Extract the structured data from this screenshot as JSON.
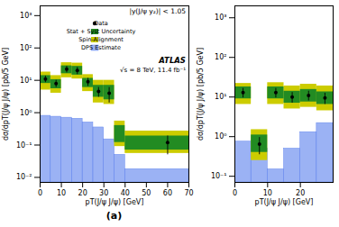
{
  "chart_data": [
    {
      "type": "errorbar",
      "xlabel": "pT(J/ψ J/ψ) [GeV]",
      "ylabel": "dσ/dpT(J/ψ J/ψ) [pb/5 GeV]",
      "log": "y",
      "xlim": [
        0,
        70
      ],
      "xticks": [
        0,
        10,
        20,
        30,
        40,
        50,
        60,
        70
      ],
      "ylim": [
        0.007,
        2000
      ],
      "yticks": [
        {
          "value": 0.01,
          "label": "10⁻²"
        },
        {
          "value": 0.1,
          "label": "10⁻¹"
        },
        {
          "value": 1,
          "label": "10⁰"
        },
        {
          "value": 10,
          "label": "10¹"
        },
        {
          "value": 100,
          "label": "10²"
        },
        {
          "value": 1000,
          "label": "10³"
        }
      ],
      "legend": "upper right",
      "annotations": [
        "|y(J/ψ y₂)| < 1.05",
        "ATLAS",
        "√s = 8 TeV, 11.4 fb⁻¹"
      ],
      "caption": "(a)",
      "series": [
        {
          "name": "Data",
          "type": "errorbar",
          "color": "black",
          "marker": "circle",
          "x": [
            2.5,
            7.5,
            12.5,
            17.5,
            22.5,
            27.5,
            32.5,
            60.0
          ],
          "values": [
            11.0,
            8.0,
            22.0,
            20.0,
            9.0,
            4.5,
            4.0,
            0.12
          ],
          "error_low": [
            2.5,
            2.0,
            5.0,
            5.0,
            2.5,
            1.5,
            2.0,
            0.07
          ],
          "error_high": [
            2.5,
            2.0,
            5.0,
            5.0,
            2.5,
            1.5,
            2.0,
            0.07
          ]
        },
        {
          "name": "Stat + Syst Uncertainty",
          "type": "band",
          "color": "#228b22",
          "bins": [
            0,
            5,
            10,
            15,
            20,
            25,
            30,
            35,
            40,
            70
          ],
          "low": [
            8.0,
            5.5,
            16.0,
            14.5,
            6.0,
            3.0,
            2.5,
            0.12,
            0.07
          ],
          "high": [
            14.0,
            10.5,
            28.0,
            27.0,
            11.5,
            7.0,
            7.0,
            0.4,
            0.19
          ]
        },
        {
          "name": "Spin-Alignment",
          "type": "band",
          "color": "#cccc00",
          "bins": [
            0,
            5,
            10,
            15,
            20,
            25,
            30,
            35,
            40,
            70
          ],
          "low": [
            5.0,
            4.0,
            12.0,
            11.0,
            4.5,
            2.0,
            1.8,
            0.09,
            0.055
          ],
          "high": [
            18.0,
            14.0,
            35.0,
            34.0,
            15.0,
            10.0,
            10.0,
            0.55,
            0.27
          ]
        },
        {
          "name": "DPS Estimate",
          "type": "bar",
          "color": "#6688ee",
          "bins": [
            0,
            5,
            10,
            15,
            20,
            25,
            30,
            35,
            40,
            70
          ],
          "values": [
            0.8,
            0.75,
            0.7,
            0.65,
            0.5,
            0.35,
            0.15,
            0.05,
            0.018
          ]
        }
      ]
    },
    {
      "type": "errorbar",
      "xlabel": "pT(J/ψ J/ψ) [GeV]",
      "ylabel": "dσ/dpT(J/ψ J/ψ) [pb/5 GeV]",
      "log": "y",
      "xlim": [
        0,
        30
      ],
      "xticks": [
        0,
        10,
        20
      ],
      "ylim": [
        0.07,
        2000
      ],
      "yticks": [
        {
          "value": 0.1,
          "label": "10⁻¹"
        },
        {
          "value": 1,
          "label": "10⁰"
        },
        {
          "value": 10,
          "label": "10¹"
        },
        {
          "value": 100,
          "label": "10²"
        },
        {
          "value": 1000,
          "label": "10³"
        }
      ],
      "series": [
        {
          "type": "errorbar",
          "color": "black",
          "marker": "circle",
          "x": [
            2.5,
            7.5,
            12.5,
            17.5,
            22.5,
            27.5
          ],
          "values": [
            13.0,
            0.65,
            13.0,
            10.0,
            11.0,
            9.5
          ],
          "error_low": [
            3.5,
            0.3,
            3.5,
            3.0,
            3.0,
            3.0
          ],
          "error_high": [
            3.5,
            0.3,
            3.5,
            3.0,
            3.0,
            3.0
          ]
        },
        {
          "type": "band",
          "color": "#228b22",
          "bins": [
            0,
            5,
            10,
            15,
            20,
            25,
            30
          ],
          "low": [
            9.0,
            0.4,
            9.0,
            7.0,
            7.5,
            6.5
          ],
          "high": [
            18.0,
            1.1,
            18.0,
            14.0,
            15.5,
            13.5
          ]
        },
        {
          "type": "band",
          "color": "#cccc00",
          "bins": [
            0,
            5,
            10,
            15,
            20,
            25,
            30
          ],
          "low": [
            6.5,
            0.25,
            6.5,
            5.0,
            5.5,
            4.5
          ],
          "high": [
            22.0,
            1.5,
            23.0,
            19.0,
            21.0,
            19.0
          ]
        },
        {
          "type": "bar",
          "color": "#6688ee",
          "bins": [
            0,
            5,
            10,
            15,
            20,
            25,
            30
          ],
          "values": [
            0.75,
            0.5,
            0.15,
            0.5,
            1.3,
            2.2
          ]
        }
      ]
    }
  ]
}
